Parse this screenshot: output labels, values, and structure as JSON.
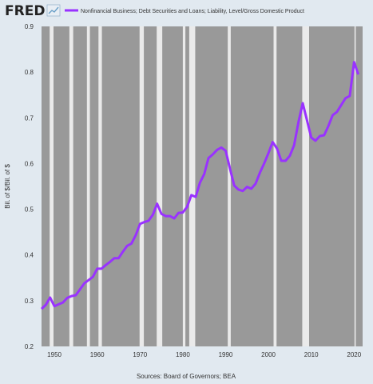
{
  "header": {
    "logo_text": "FRED",
    "logo_icon": "fred-trend-line-icon",
    "legend_label": "Nonfinancial Business; Debt Securities and Loans; Liability, Level/Gross Domestic Product"
  },
  "footer": {
    "source": "Sources: Board of Governors; BEA"
  },
  "colors": {
    "background": "#e1e9f0",
    "plot_background": "#eaeaea",
    "recession_shade": "#999999",
    "series_line": "#9932ff",
    "logo_accent": "#6aa0c8"
  },
  "chart_data": {
    "type": "line",
    "title": "",
    "xlabel": "",
    "ylabel": "Bil. of $/Bil. of $",
    "xlim": [
      1947,
      2022
    ],
    "ylim": [
      0.2,
      0.9
    ],
    "yticks": [
      0.2,
      0.3,
      0.4,
      0.5,
      0.6,
      0.7,
      0.8,
      0.9
    ],
    "xticks": [
      1950,
      1960,
      1970,
      1980,
      1990,
      2000,
      2010,
      2020
    ],
    "grid": false,
    "series": [
      {
        "name": "Nonfinancial Business; Debt Securities and Loans; Liability, Level/Gross Domestic Product",
        "x": [
          1947,
          1948,
          1949,
          1950,
          1951,
          1952,
          1953,
          1954,
          1955,
          1956,
          1957,
          1958,
          1959,
          1960,
          1961,
          1962,
          1963,
          1964,
          1965,
          1966,
          1967,
          1968,
          1969,
          1970,
          1971,
          1972,
          1973,
          1974,
          1975,
          1976,
          1977,
          1978,
          1979,
          1980,
          1981,
          1982,
          1983,
          1984,
          1985,
          1986,
          1987,
          1988,
          1989,
          1990,
          1991,
          1992,
          1993,
          1994,
          1995,
          1996,
          1997,
          1998,
          1999,
          2000,
          2001,
          2002,
          2003,
          2004,
          2005,
          2006,
          2007,
          2008,
          2009,
          2010,
          2011,
          2012,
          2013,
          2014,
          2015,
          2016,
          2017,
          2018,
          2019,
          2020,
          2021
        ],
        "values": [
          0.282,
          0.291,
          0.307,
          0.288,
          0.292,
          0.296,
          0.306,
          0.31,
          0.312,
          0.325,
          0.338,
          0.345,
          0.352,
          0.37,
          0.37,
          0.378,
          0.385,
          0.393,
          0.393,
          0.407,
          0.42,
          0.425,
          0.443,
          0.468,
          0.472,
          0.475,
          0.488,
          0.512,
          0.49,
          0.485,
          0.485,
          0.48,
          0.492,
          0.493,
          0.505,
          0.531,
          0.527,
          0.558,
          0.577,
          0.612,
          0.62,
          0.63,
          0.635,
          0.628,
          0.59,
          0.552,
          0.543,
          0.54,
          0.549,
          0.545,
          0.556,
          0.58,
          0.6,
          0.623,
          0.647,
          0.633,
          0.606,
          0.606,
          0.617,
          0.64,
          0.69,
          0.732,
          0.695,
          0.657,
          0.65,
          0.66,
          0.662,
          0.682,
          0.706,
          0.713,
          0.728,
          0.743,
          0.748,
          0.822,
          0.795
        ]
      }
    ],
    "recessions": [
      [
        1948.9,
        1949.8
      ],
      [
        1953.5,
        1954.4
      ],
      [
        1957.6,
        1958.3
      ],
      [
        1960.3,
        1961.1
      ],
      [
        1969.9,
        1970.9
      ],
      [
        1973.9,
        1975.2
      ],
      [
        1980.0,
        1980.6
      ],
      [
        1981.5,
        1982.9
      ],
      [
        1990.5,
        1991.2
      ],
      [
        2001.2,
        2001.9
      ],
      [
        2007.9,
        2009.5
      ],
      [
        2020.1,
        2020.4
      ]
    ]
  }
}
